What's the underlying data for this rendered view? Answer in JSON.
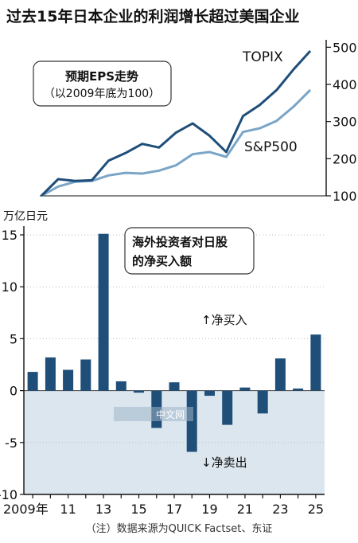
{
  "title": "过去15年日本企业的利润增长超过美国企业",
  "note": "（注）数据来源为QUICK Factset、东证",
  "watermark": "中文网",
  "colors": {
    "topix": "#1f4e79",
    "sp500": "#7aa5c7",
    "bar": "#1f4e79",
    "negative_bg": "#dce6ef",
    "grid": "#bbbbbb"
  },
  "chart_data": [
    {
      "type": "line",
      "title": "预期EPS走势",
      "subtitle": "（以2009年底为100）",
      "ylim": [
        100,
        520
      ],
      "yticks": [
        100,
        200,
        300,
        400,
        500
      ],
      "x": [
        2009,
        2010,
        2011,
        2012,
        2013,
        2014,
        2015,
        2016,
        2017,
        2018,
        2019,
        2020,
        2021,
        2022,
        2023,
        2024,
        2025
      ],
      "series": [
        {
          "name": "TOPIX",
          "values": [
            100,
            145,
            140,
            142,
            195,
            215,
            240,
            230,
            270,
            295,
            262,
            218,
            315,
            345,
            385,
            440,
            490
          ]
        },
        {
          "name": "S&P500",
          "values": [
            100,
            125,
            138,
            140,
            155,
            162,
            160,
            168,
            182,
            212,
            218,
            205,
            272,
            282,
            302,
            340,
            385
          ]
        }
      ]
    },
    {
      "type": "bar",
      "title": "海外投资者对日股的净买入额",
      "ylabel": "万亿日元",
      "ylim": [
        -10,
        15
      ],
      "yticks": [
        15,
        10,
        5,
        0,
        -5,
        -10
      ],
      "x": [
        2009,
        2010,
        2011,
        2012,
        2013,
        2014,
        2015,
        2016,
        2017,
        2018,
        2019,
        2020,
        2021,
        2022,
        2023,
        2024,
        2025
      ],
      "xtick_labels": [
        "2009年",
        "11",
        "13",
        "15",
        "17",
        "19",
        "21",
        "23",
        "25"
      ],
      "values": [
        1.8,
        3.2,
        2.0,
        3.0,
        15.1,
        0.9,
        -0.2,
        -3.6,
        0.8,
        -5.9,
        -0.5,
        -3.3,
        0.3,
        -2.2,
        3.1,
        0.2,
        5.4
      ],
      "annotations": {
        "buy": "↑净买入",
        "sell": "↓净卖出"
      }
    }
  ]
}
